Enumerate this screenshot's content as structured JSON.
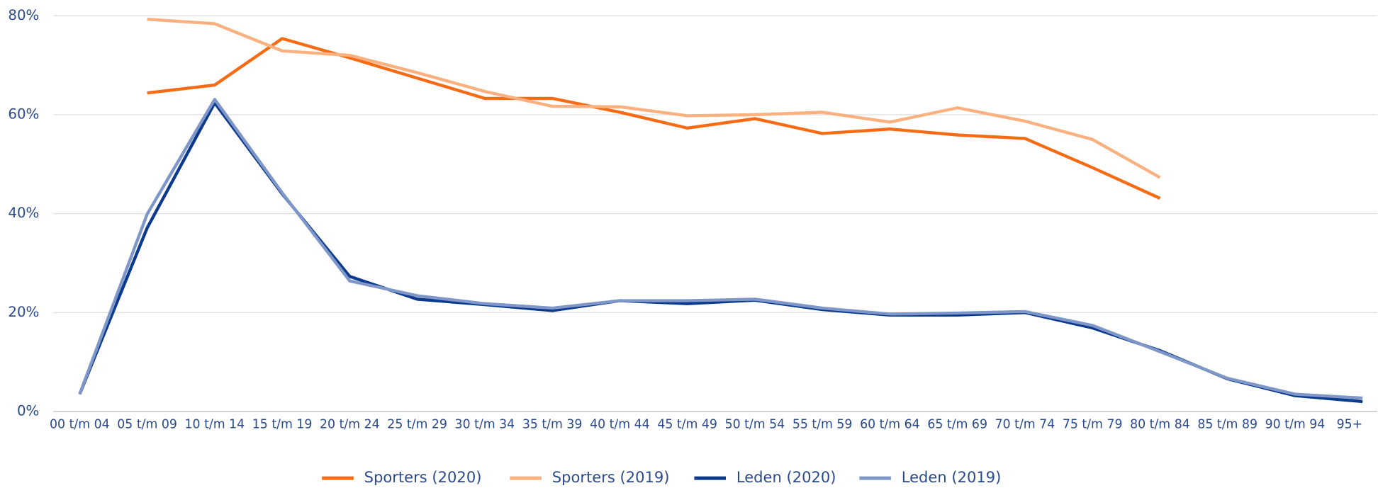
{
  "chart_data": {
    "type": "line",
    "categories": [
      "00 t/m 04",
      "05 t/m 09",
      "10 t/m 14",
      "15 t/m 19",
      "20 t/m 24",
      "25 t/m 29",
      "30 t/m 34",
      "35 t/m 39",
      "40 t/m 44",
      "45 t/m 49",
      "50 t/m 54",
      "55 t/m 59",
      "60 t/m 64",
      "65 t/m 69",
      "70 t/m 74",
      "75 t/m 79",
      "80 t/m 84",
      "85 t/m 89",
      "90 t/m 94",
      "95+"
    ],
    "series": [
      {
        "name": "Sporters (2020)",
        "color": "#f76b15",
        "values": [
          null,
          64.4,
          66.0,
          75.4,
          71.5,
          67.4,
          63.3,
          63.3,
          60.5,
          57.3,
          59.2,
          56.2,
          57.1,
          55.9,
          55.2,
          49.3,
          43.1,
          null,
          null,
          null
        ]
      },
      {
        "name": "Sporters (2019)",
        "color": "#fbb07f",
        "values": [
          null,
          79.3,
          78.4,
          72.9,
          72.0,
          68.5,
          64.7,
          61.7,
          61.6,
          59.8,
          60.0,
          60.5,
          58.5,
          61.4,
          58.7,
          55.0,
          47.3,
          null,
          null,
          null
        ]
      },
      {
        "name": "Leden (2020)",
        "color": "#0b3a8c",
        "values": [
          3.5,
          37.1,
          62.4,
          44.0,
          27.3,
          22.7,
          21.6,
          20.4,
          22.4,
          21.8,
          22.5,
          20.6,
          19.5,
          19.5,
          20.0,
          16.9,
          12.3,
          6.6,
          3.2,
          2.0
        ]
      },
      {
        "name": "Leden (2019)",
        "color": "#7e97c8",
        "values": [
          3.5,
          39.9,
          63.1,
          44.2,
          26.4,
          23.4,
          21.8,
          20.9,
          22.4,
          22.4,
          22.7,
          20.9,
          19.7,
          19.9,
          20.2,
          17.4,
          12.1,
          6.7,
          3.5,
          2.7
        ]
      }
    ],
    "ylim": [
      0,
      80
    ],
    "yticks": [
      {
        "value": 0,
        "label": "0%"
      },
      {
        "value": 20,
        "label": "20%"
      },
      {
        "value": 40,
        "label": "40%"
      },
      {
        "value": 60,
        "label": "60%"
      },
      {
        "value": 80,
        "label": "80%"
      }
    ],
    "grid": true,
    "legend": "bottom"
  }
}
